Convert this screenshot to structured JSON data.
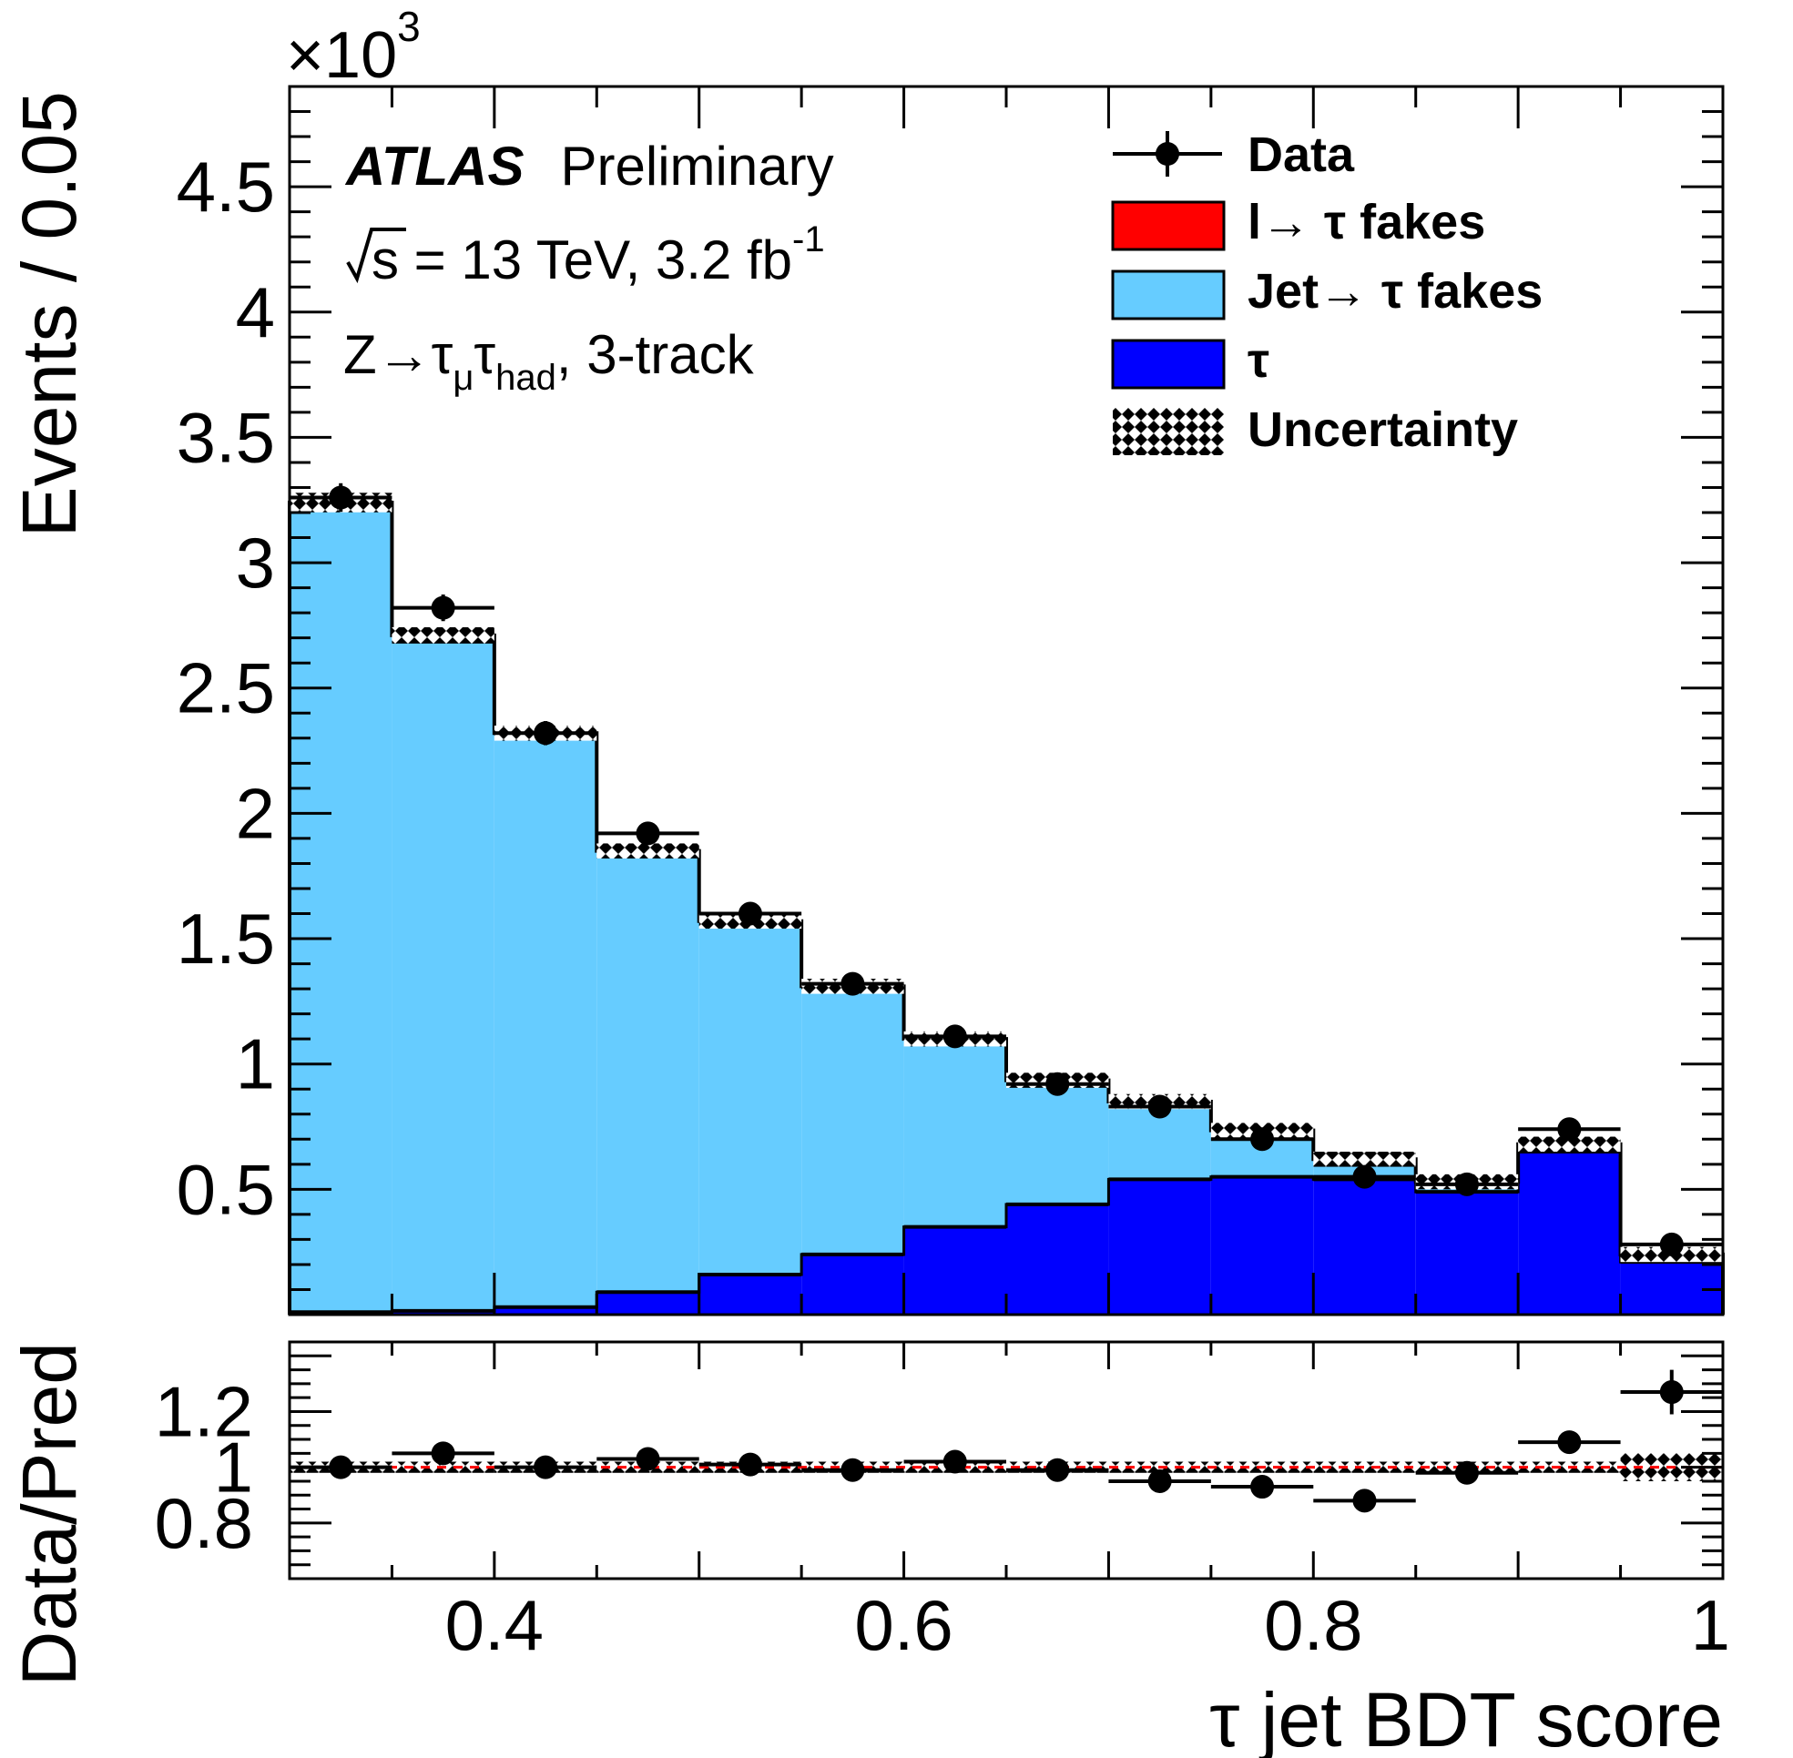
{
  "colors": {
    "lepton_fakes": "#ff0000",
    "jet_fakes": "#66ccff",
    "tau": "#0000ff",
    "data": "#000000"
  },
  "labels": {
    "experiment": "ATLAS",
    "status": "Preliminary",
    "sqrt_s": "s",
    "energy_lumi": " = 13 TeV, 3.2 fb",
    "lumi_exp": "-1",
    "channel_main": "Z→τ",
    "channel_sub1": "μ",
    "channel_mid": "τ",
    "channel_sub2": "had",
    "channel_end": ", 3-track",
    "multiplier": "×10",
    "multiplier_exp": "3"
  },
  "legend": {
    "data": "Data",
    "lepton_fakes": "l→ τ fakes",
    "jet_fakes": "Jet→ τ fakes",
    "tau": "τ",
    "uncertainty": "Uncertainty"
  },
  "chart_data": [
    {
      "type": "bar",
      "stacked": true,
      "bin_edges": [
        0.3,
        0.35,
        0.4,
        0.45,
        0.5,
        0.55,
        0.6,
        0.65,
        0.7,
        0.75,
        0.8,
        0.85,
        0.9,
        0.95,
        1.0
      ],
      "series": [
        {
          "name": "τ",
          "values": [
            0.01,
            0.015,
            0.03,
            0.09,
            0.16,
            0.24,
            0.35,
            0.44,
            0.54,
            0.55,
            0.54,
            0.49,
            0.65,
            0.21
          ]
        },
        {
          "name": "l→ τ fakes",
          "values": [
            0.005,
            0.005,
            0.005,
            0.005,
            0.005,
            0.005,
            0.005,
            0.005,
            0.005,
            0.005,
            0.005,
            0.005,
            0.005,
            0.005
          ]
        },
        {
          "name": "Jet→ τ fakes",
          "values": [
            3.225,
            2.69,
            2.285,
            1.755,
            1.405,
            1.065,
            0.745,
            0.49,
            0.305,
            0.18,
            0.075,
            0.035,
            0.025,
            0.025
          ]
        }
      ],
      "data": {
        "name": "Data",
        "x": [
          0.325,
          0.375,
          0.425,
          0.475,
          0.525,
          0.575,
          0.625,
          0.675,
          0.725,
          0.775,
          0.825,
          0.875,
          0.925,
          0.975
        ],
        "y": [
          3.26,
          2.82,
          2.32,
          1.92,
          1.6,
          1.32,
          1.11,
          0.92,
          0.83,
          0.7,
          0.55,
          0.52,
          0.74,
          0.28
        ]
      },
      "ylabel": "Events / 0.05",
      "ylim": [
        0,
        4.9
      ],
      "y_ticks": [
        "0.5",
        "1",
        "1.5",
        "2",
        "2.5",
        "3",
        "3.5",
        "4",
        "4.5"
      ],
      "legend_position": "top-right"
    },
    {
      "type": "scatter",
      "x": [
        0.325,
        0.375,
        0.425,
        0.475,
        0.525,
        0.575,
        0.625,
        0.675,
        0.725,
        0.775,
        0.825,
        0.875,
        0.925,
        0.975
      ],
      "y": [
        1.0,
        1.05,
        1.0,
        1.03,
        1.01,
        0.99,
        1.02,
        0.99,
        0.95,
        0.93,
        0.88,
        0.98,
        1.09,
        1.27
      ],
      "ylabel": "Data/Pred",
      "xlabel": "τ jet BDT score",
      "xlim": [
        0.3,
        1.0
      ],
      "ylim": [
        0.6,
        1.45
      ],
      "x_ticks": [
        "0.4",
        "0.6",
        "0.8",
        "1"
      ],
      "y_ticks": [
        "0.8",
        "1",
        "1.2"
      ]
    }
  ]
}
